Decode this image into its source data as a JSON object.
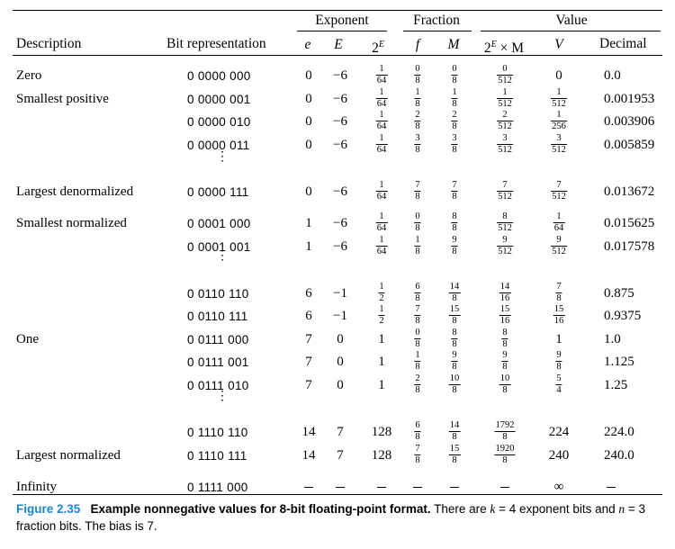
{
  "headers": {
    "group_exponent": "Exponent",
    "group_fraction": "Fraction",
    "group_value": "Value",
    "description": "Description",
    "bit_representation": "Bit representation",
    "e": "e",
    "E": "E",
    "two_E": "2",
    "two_E_sup": "E",
    "f": "f",
    "M": "M",
    "twoE_times_M": "2",
    "twoE_times_M_sup": "E",
    "twoE_times_M_tail": " × M",
    "V": "V",
    "decimal": "Decimal"
  },
  "rows": [
    {
      "description": "Zero",
      "bits": "0 0000 000",
      "e": "0",
      "E": "−6",
      "twoE": [
        "1",
        "64"
      ],
      "f": [
        "0",
        "8"
      ],
      "M": [
        "0",
        "8"
      ],
      "twoEM": [
        "0",
        "512"
      ],
      "V": "0",
      "decimal": "0.0"
    },
    {
      "description": "Smallest positive",
      "bits": "0 0000 001",
      "e": "0",
      "E": "−6",
      "twoE": [
        "1",
        "64"
      ],
      "f": [
        "1",
        "8"
      ],
      "M": [
        "1",
        "8"
      ],
      "twoEM": [
        "1",
        "512"
      ],
      "V": [
        "1",
        "512"
      ],
      "decimal": "0.001953"
    },
    {
      "description": "",
      "bits": "0 0000 010",
      "e": "0",
      "E": "−6",
      "twoE": [
        "1",
        "64"
      ],
      "f": [
        "2",
        "8"
      ],
      "M": [
        "2",
        "8"
      ],
      "twoEM": [
        "2",
        "512"
      ],
      "V": [
        "1",
        "256"
      ],
      "decimal": "0.003906"
    },
    {
      "description": "",
      "bits": "0 0000 011",
      "e": "0",
      "E": "−6",
      "twoE": [
        "1",
        "64"
      ],
      "f": [
        "3",
        "8"
      ],
      "M": [
        "3",
        "8"
      ],
      "twoEM": [
        "3",
        "512"
      ],
      "V": [
        "3",
        "512"
      ],
      "decimal": "0.005859"
    },
    {
      "description": "Largest denormalized",
      "bits": "0 0000 111",
      "e": "0",
      "E": "−6",
      "twoE": [
        "1",
        "64"
      ],
      "f": [
        "7",
        "8"
      ],
      "M": [
        "7",
        "8"
      ],
      "twoEM": [
        "7",
        "512"
      ],
      "V": [
        "7",
        "512"
      ],
      "decimal": "0.013672"
    },
    {
      "description": "Smallest normalized",
      "bits": "0 0001 000",
      "e": "1",
      "E": "−6",
      "twoE": [
        "1",
        "64"
      ],
      "f": [
        "0",
        "8"
      ],
      "M": [
        "8",
        "8"
      ],
      "twoEM": [
        "8",
        "512"
      ],
      "V": [
        "1",
        "64"
      ],
      "decimal": "0.015625"
    },
    {
      "description": "",
      "bits": "0 0001 001",
      "e": "1",
      "E": "−6",
      "twoE": [
        "1",
        "64"
      ],
      "f": [
        "1",
        "8"
      ],
      "M": [
        "9",
        "8"
      ],
      "twoEM": [
        "9",
        "512"
      ],
      "V": [
        "9",
        "512"
      ],
      "decimal": "0.017578"
    },
    {
      "description": "",
      "bits": "0 0110 110",
      "e": "6",
      "E": "−1",
      "twoE": [
        "1",
        "2"
      ],
      "f": [
        "6",
        "8"
      ],
      "M": [
        "14",
        "8"
      ],
      "twoEM": [
        "14",
        "16"
      ],
      "V": [
        "7",
        "8"
      ],
      "decimal": "0.875"
    },
    {
      "description": "",
      "bits": "0 0110 111",
      "e": "6",
      "E": "−1",
      "twoE": [
        "1",
        "2"
      ],
      "f": [
        "7",
        "8"
      ],
      "M": [
        "15",
        "8"
      ],
      "twoEM": [
        "15",
        "16"
      ],
      "V": [
        "15",
        "16"
      ],
      "decimal": "0.9375"
    },
    {
      "description": "One",
      "bits": "0 0111 000",
      "e": "7",
      "E": "0",
      "twoE": "1",
      "f": [
        "0",
        "8"
      ],
      "M": [
        "8",
        "8"
      ],
      "twoEM": [
        "8",
        "8"
      ],
      "V": "1",
      "decimal": "1.0"
    },
    {
      "description": "",
      "bits": "0 0111 001",
      "e": "7",
      "E": "0",
      "twoE": "1",
      "f": [
        "1",
        "8"
      ],
      "M": [
        "9",
        "8"
      ],
      "twoEM": [
        "9",
        "8"
      ],
      "V": [
        "9",
        "8"
      ],
      "decimal": "1.125"
    },
    {
      "description": "",
      "bits": "0 0111 010",
      "e": "7",
      "E": "0",
      "twoE": "1",
      "f": [
        "2",
        "8"
      ],
      "M": [
        "10",
        "8"
      ],
      "twoEM": [
        "10",
        "8"
      ],
      "V": [
        "5",
        "4"
      ],
      "decimal": "1.25"
    },
    {
      "description": "",
      "bits": "0 1110 110",
      "e": "14",
      "E": "7",
      "twoE": "128",
      "f": [
        "6",
        "8"
      ],
      "M": [
        "14",
        "8"
      ],
      "twoEM": [
        "1792",
        "8"
      ],
      "V": "224",
      "decimal": "224.0"
    },
    {
      "description": "Largest normalized",
      "bits": "0 1110 111",
      "e": "14",
      "E": "7",
      "twoE": "128",
      "f": [
        "7",
        "8"
      ],
      "M": [
        "15",
        "8"
      ],
      "twoEM": [
        "1920",
        "8"
      ],
      "V": "240",
      "decimal": "240.0"
    },
    {
      "description": "Infinity",
      "bits": "0 1111 000",
      "e": "—",
      "E": "—",
      "twoE": "—",
      "f": "—",
      "M": "—",
      "twoEM": "—",
      "V": "∞",
      "decimal": "—"
    }
  ],
  "ellipsis": "⋮",
  "caption": {
    "label": "Figure 2.35",
    "title": "Example nonnegative values for 8-bit floating-point format.",
    "text_a": " There are ",
    "k_var": "k",
    "text_b": " = 4 exponent bits and ",
    "n_var": "n",
    "text_c": " = 3 fraction bits. The bias is 7."
  }
}
